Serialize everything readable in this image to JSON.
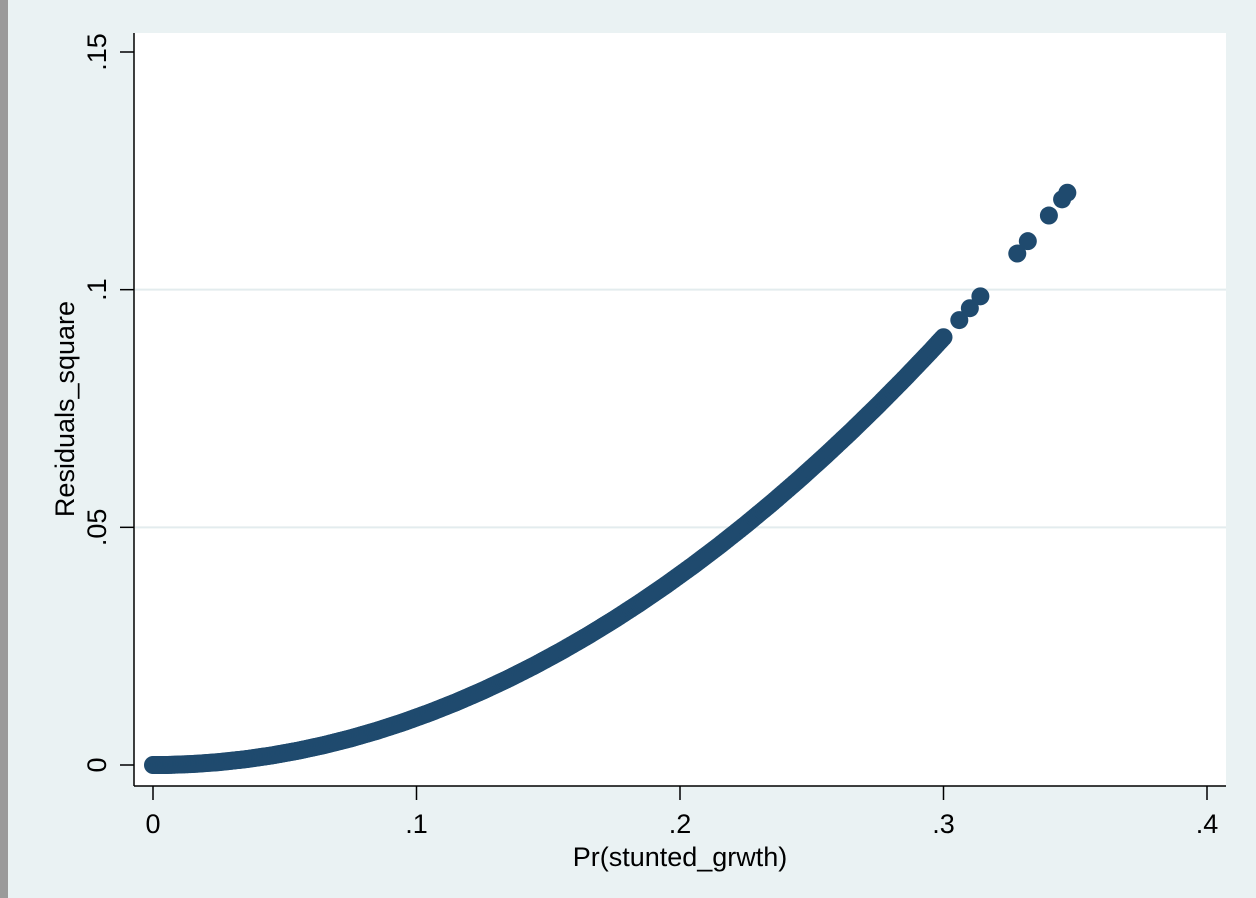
{
  "chart_data": {
    "type": "scatter",
    "xlabel": "Pr(stunted_grwth)",
    "ylabel": "Residuals_square",
    "xlim": [
      0,
      0.4
    ],
    "ylim": [
      0,
      0.15
    ],
    "x_ticks": [
      {
        "value": 0,
        "label": "0"
      },
      {
        "value": 0.1,
        "label": ".1"
      },
      {
        "value": 0.2,
        "label": ".2"
      },
      {
        "value": 0.3,
        "label": ".3"
      },
      {
        "value": 0.4,
        "label": ".4"
      }
    ],
    "y_ticks": [
      {
        "value": 0,
        "label": "0"
      },
      {
        "value": 0.05,
        "label": ".05"
      },
      {
        "value": 0.1,
        "label": ".1"
      },
      {
        "value": 0.15,
        "label": ".15"
      }
    ],
    "grid": "horizontal",
    "colors": {
      "marker": "#1f4a6e",
      "outer_background": "#eaf2f3",
      "plot_background": "#ffffff",
      "grid": "#e3ecee"
    },
    "x": [
      0.0,
      0.005,
      0.01,
      0.015,
      0.02,
      0.025,
      0.03,
      0.035,
      0.04,
      0.045,
      0.05,
      0.055,
      0.06,
      0.065,
      0.07,
      0.075,
      0.08,
      0.085,
      0.09,
      0.095,
      0.1,
      0.105,
      0.11,
      0.115,
      0.12,
      0.125,
      0.13,
      0.135,
      0.14,
      0.145,
      0.15,
      0.155,
      0.16,
      0.165,
      0.17,
      0.175,
      0.18,
      0.185,
      0.19,
      0.195,
      0.2,
      0.205,
      0.21,
      0.215,
      0.22,
      0.225,
      0.23,
      0.235,
      0.24,
      0.245,
      0.25,
      0.255,
      0.26,
      0.265,
      0.27,
      0.275,
      0.28,
      0.285,
      0.29,
      0.295,
      0.3,
      0.306,
      0.31,
      0.314,
      0.328,
      0.332,
      0.34,
      0.345,
      0.347
    ],
    "y": [
      0.0,
      0.0,
      0.0001,
      0.0002,
      0.0004,
      0.0006,
      0.0009,
      0.0012,
      0.0016,
      0.002,
      0.0025,
      0.003,
      0.0036,
      0.0042,
      0.0049,
      0.0056,
      0.0064,
      0.0072,
      0.0081,
      0.009,
      0.01,
      0.011,
      0.0121,
      0.0132,
      0.0144,
      0.0156,
      0.0169,
      0.0182,
      0.0196,
      0.021,
      0.0225,
      0.024,
      0.0256,
      0.0272,
      0.0289,
      0.0306,
      0.0324,
      0.0342,
      0.0361,
      0.038,
      0.04,
      0.042,
      0.0441,
      0.0462,
      0.0484,
      0.0506,
      0.0529,
      0.0552,
      0.0576,
      0.06,
      0.0625,
      0.065,
      0.0676,
      0.0702,
      0.0729,
      0.0756,
      0.0784,
      0.0812,
      0.0841,
      0.087,
      0.09,
      0.0936,
      0.0961,
      0.0986,
      0.1076,
      0.1102,
      0.1156,
      0.119,
      0.1204
    ]
  }
}
